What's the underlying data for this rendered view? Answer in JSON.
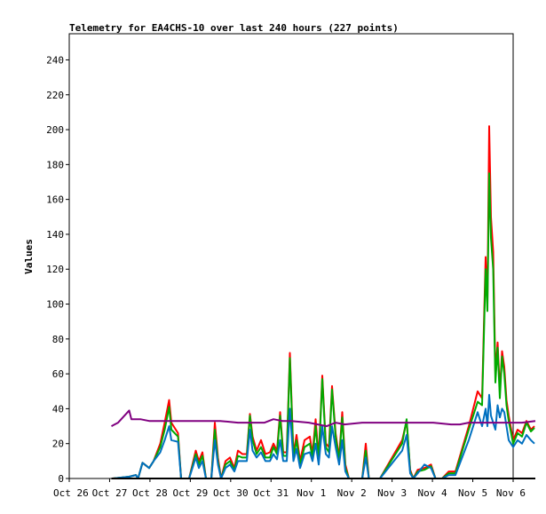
{
  "chart_data": {
    "type": "line",
    "title": "Telemetry for EA4CHS-10 over last 240 hours (227 points)",
    "xlabel": "",
    "ylabel": "Values",
    "xlim": [
      0,
      10
    ],
    "ylim": [
      0,
      255
    ],
    "x_tick_labels": [
      "Oct 26",
      "Oct 27",
      "Oct 28",
      "Oct 29",
      "Oct 30",
      "Oct 31",
      "Nov 1",
      "Nov 2",
      "Nov 3",
      "Nov 4",
      "Nov 5",
      "Nov 6"
    ],
    "y_ticks": [
      0,
      20,
      40,
      60,
      80,
      100,
      120,
      140,
      160,
      180,
      200,
      220,
      240
    ],
    "grid": false,
    "legend": "none",
    "series": [
      {
        "color": "#ff0000",
        "points": [
          [
            0.97,
            0
          ],
          [
            1.35,
            1
          ],
          [
            1.5,
            2
          ],
          [
            1.55,
            0
          ],
          [
            1.65,
            9
          ],
          [
            1.8,
            6
          ],
          [
            1.9,
            10
          ],
          [
            2.05,
            20
          ],
          [
            2.15,
            32
          ],
          [
            2.25,
            45
          ],
          [
            2.3,
            32
          ],
          [
            2.45,
            26
          ],
          [
            2.52,
            0
          ],
          [
            2.7,
            0
          ],
          [
            2.85,
            16
          ],
          [
            2.92,
            10
          ],
          [
            3.0,
            15
          ],
          [
            3.08,
            0
          ],
          [
            3.2,
            0
          ],
          [
            3.28,
            32
          ],
          [
            3.35,
            12
          ],
          [
            3.42,
            0
          ],
          [
            3.52,
            10
          ],
          [
            3.62,
            12
          ],
          [
            3.72,
            6
          ],
          [
            3.8,
            16
          ],
          [
            3.9,
            14
          ],
          [
            4.0,
            14
          ],
          [
            4.07,
            37
          ],
          [
            4.13,
            24
          ],
          [
            4.22,
            16
          ],
          [
            4.32,
            22
          ],
          [
            4.42,
            14
          ],
          [
            4.52,
            15
          ],
          [
            4.6,
            20
          ],
          [
            4.68,
            16
          ],
          [
            4.75,
            38
          ],
          [
            4.82,
            15
          ],
          [
            4.9,
            15
          ],
          [
            4.97,
            72
          ],
          [
            5.05,
            14
          ],
          [
            5.12,
            25
          ],
          [
            5.2,
            10
          ],
          [
            5.3,
            22
          ],
          [
            5.42,
            24
          ],
          [
            5.48,
            14
          ],
          [
            5.55,
            34
          ],
          [
            5.62,
            12
          ],
          [
            5.7,
            59
          ],
          [
            5.78,
            20
          ],
          [
            5.85,
            18
          ],
          [
            5.92,
            53
          ],
          [
            6.0,
            26
          ],
          [
            6.08,
            12
          ],
          [
            6.15,
            38
          ],
          [
            6.22,
            8
          ],
          [
            6.3,
            0
          ],
          [
            6.6,
            0
          ],
          [
            6.68,
            20
          ],
          [
            6.75,
            0
          ],
          [
            7.0,
            0
          ],
          [
            7.5,
            22
          ],
          [
            7.6,
            33
          ],
          [
            7.68,
            5
          ],
          [
            7.75,
            0
          ],
          [
            7.85,
            5
          ],
          [
            8.0,
            6
          ],
          [
            8.15,
            8
          ],
          [
            8.25,
            0
          ],
          [
            8.4,
            0
          ],
          [
            8.55,
            4
          ],
          [
            8.7,
            4
          ],
          [
            9.0,
            30
          ],
          [
            9.2,
            50
          ],
          [
            9.3,
            46
          ],
          [
            9.38,
            127
          ],
          [
            9.42,
            100
          ],
          [
            9.46,
            202
          ],
          [
            9.5,
            150
          ],
          [
            9.55,
            130
          ],
          [
            9.6,
            60
          ],
          [
            9.65,
            78
          ],
          [
            9.7,
            50
          ],
          [
            9.75,
            73
          ],
          [
            9.8,
            64
          ],
          [
            9.85,
            45
          ],
          [
            9.9,
            36
          ],
          [
            10.0,
            22
          ],
          [
            10.1,
            28
          ],
          [
            10.2,
            26
          ],
          [
            10.3,
            33
          ],
          [
            10.4,
            28
          ],
          [
            10.48,
            30
          ]
        ]
      },
      {
        "color": "#00aa00",
        "points": [
          [
            0.97,
            0
          ],
          [
            1.35,
            1
          ],
          [
            1.5,
            2
          ],
          [
            1.55,
            0
          ],
          [
            1.65,
            9
          ],
          [
            1.8,
            6
          ],
          [
            1.9,
            10
          ],
          [
            2.05,
            18
          ],
          [
            2.15,
            28
          ],
          [
            2.25,
            41
          ],
          [
            2.3,
            28
          ],
          [
            2.45,
            24
          ],
          [
            2.52,
            0
          ],
          [
            2.7,
            0
          ],
          [
            2.85,
            14
          ],
          [
            2.92,
            8
          ],
          [
            3.0,
            13
          ],
          [
            3.08,
            0
          ],
          [
            3.2,
            0
          ],
          [
            3.28,
            28
          ],
          [
            3.35,
            10
          ],
          [
            3.42,
            0
          ],
          [
            3.52,
            8
          ],
          [
            3.62,
            10
          ],
          [
            3.72,
            5
          ],
          [
            3.8,
            13
          ],
          [
            3.9,
            12
          ],
          [
            4.0,
            12
          ],
          [
            4.07,
            36
          ],
          [
            4.13,
            22
          ],
          [
            4.22,
            14
          ],
          [
            4.32,
            18
          ],
          [
            4.42,
            12
          ],
          [
            4.52,
            12
          ],
          [
            4.6,
            18
          ],
          [
            4.68,
            14
          ],
          [
            4.75,
            36
          ],
          [
            4.82,
            13
          ],
          [
            4.9,
            13
          ],
          [
            4.97,
            69
          ],
          [
            5.05,
            12
          ],
          [
            5.12,
            22
          ],
          [
            5.2,
            8
          ],
          [
            5.3,
            18
          ],
          [
            5.42,
            20
          ],
          [
            5.48,
            12
          ],
          [
            5.55,
            30
          ],
          [
            5.62,
            10
          ],
          [
            5.7,
            57
          ],
          [
            5.78,
            18
          ],
          [
            5.85,
            15
          ],
          [
            5.92,
            51
          ],
          [
            6.0,
            24
          ],
          [
            6.08,
            10
          ],
          [
            6.15,
            35
          ],
          [
            6.22,
            6
          ],
          [
            6.3,
            0
          ],
          [
            6.6,
            0
          ],
          [
            6.68,
            16
          ],
          [
            6.75,
            0
          ],
          [
            7.0,
            0
          ],
          [
            7.5,
            20
          ],
          [
            7.6,
            34
          ],
          [
            7.68,
            4
          ],
          [
            7.75,
            0
          ],
          [
            7.85,
            4
          ],
          [
            8.0,
            5
          ],
          [
            8.15,
            7
          ],
          [
            8.25,
            0
          ],
          [
            8.4,
            0
          ],
          [
            8.55,
            3
          ],
          [
            8.7,
            3
          ],
          [
            9.0,
            28
          ],
          [
            9.2,
            44
          ],
          [
            9.3,
            42
          ],
          [
            9.38,
            120
          ],
          [
            9.42,
            96
          ],
          [
            9.46,
            175
          ],
          [
            9.5,
            138
          ],
          [
            9.55,
            120
          ],
          [
            9.6,
            55
          ],
          [
            9.65,
            75
          ],
          [
            9.7,
            46
          ],
          [
            9.75,
            70
          ],
          [
            9.8,
            60
          ],
          [
            9.85,
            42
          ],
          [
            9.9,
            33
          ],
          [
            10.0,
            20
          ],
          [
            10.1,
            26
          ],
          [
            10.2,
            24
          ],
          [
            10.3,
            32
          ],
          [
            10.4,
            27
          ],
          [
            10.48,
            29
          ]
        ]
      },
      {
        "color": "#0070c0",
        "points": [
          [
            0.97,
            0
          ],
          [
            1.35,
            1
          ],
          [
            1.5,
            2
          ],
          [
            1.55,
            0
          ],
          [
            1.65,
            9
          ],
          [
            1.8,
            6
          ],
          [
            1.9,
            10
          ],
          [
            2.05,
            15
          ],
          [
            2.15,
            22
          ],
          [
            2.25,
            30
          ],
          [
            2.3,
            22
          ],
          [
            2.45,
            21
          ],
          [
            2.52,
            0
          ],
          [
            2.7,
            0
          ],
          [
            2.85,
            12
          ],
          [
            2.92,
            6
          ],
          [
            3.0,
            10
          ],
          [
            3.08,
            0
          ],
          [
            3.2,
            0
          ],
          [
            3.28,
            22
          ],
          [
            3.35,
            8
          ],
          [
            3.42,
            0
          ],
          [
            3.52,
            6
          ],
          [
            3.62,
            8
          ],
          [
            3.72,
            4
          ],
          [
            3.8,
            10
          ],
          [
            3.9,
            10
          ],
          [
            4.0,
            10
          ],
          [
            4.07,
            28
          ],
          [
            4.13,
            16
          ],
          [
            4.22,
            12
          ],
          [
            4.32,
            15
          ],
          [
            4.42,
            10
          ],
          [
            4.52,
            10
          ],
          [
            4.6,
            14
          ],
          [
            4.68,
            11
          ],
          [
            4.75,
            22
          ],
          [
            4.82,
            10
          ],
          [
            4.9,
            10
          ],
          [
            4.97,
            40
          ],
          [
            5.05,
            10
          ],
          [
            5.12,
            17
          ],
          [
            5.2,
            6
          ],
          [
            5.3,
            14
          ],
          [
            5.42,
            15
          ],
          [
            5.48,
            10
          ],
          [
            5.55,
            20
          ],
          [
            5.62,
            8
          ],
          [
            5.7,
            30
          ],
          [
            5.78,
            14
          ],
          [
            5.85,
            12
          ],
          [
            5.92,
            30
          ],
          [
            6.0,
            18
          ],
          [
            6.08,
            8
          ],
          [
            6.15,
            22
          ],
          [
            6.22,
            4
          ],
          [
            6.3,
            0
          ],
          [
            6.6,
            0
          ],
          [
            6.68,
            12
          ],
          [
            6.75,
            0
          ],
          [
            7.0,
            0
          ],
          [
            7.5,
            16
          ],
          [
            7.6,
            25
          ],
          [
            7.68,
            3
          ],
          [
            7.75,
            0
          ],
          [
            7.85,
            3
          ],
          [
            8.0,
            8
          ],
          [
            8.15,
            6
          ],
          [
            8.25,
            0
          ],
          [
            8.4,
            0
          ],
          [
            8.55,
            2
          ],
          [
            8.7,
            2
          ],
          [
            9.0,
            22
          ],
          [
            9.2,
            38
          ],
          [
            9.3,
            30
          ],
          [
            9.38,
            40
          ],
          [
            9.42,
            30
          ],
          [
            9.46,
            48
          ],
          [
            9.5,
            36
          ],
          [
            9.55,
            32
          ],
          [
            9.6,
            28
          ],
          [
            9.65,
            42
          ],
          [
            9.7,
            35
          ],
          [
            9.75,
            40
          ],
          [
            9.8,
            38
          ],
          [
            9.85,
            30
          ],
          [
            9.9,
            22
          ],
          [
            10.0,
            18
          ],
          [
            10.1,
            22
          ],
          [
            10.2,
            20
          ],
          [
            10.3,
            25
          ],
          [
            10.4,
            22
          ],
          [
            10.48,
            20
          ]
        ]
      },
      {
        "color": "#800080",
        "points": [
          [
            0.95,
            30
          ],
          [
            1.1,
            32
          ],
          [
            1.35,
            39
          ],
          [
            1.4,
            34
          ],
          [
            1.6,
            34
          ],
          [
            1.8,
            33
          ],
          [
            2.0,
            33
          ],
          [
            2.3,
            33
          ],
          [
            2.6,
            33
          ],
          [
            3.0,
            33
          ],
          [
            3.4,
            33
          ],
          [
            3.8,
            32
          ],
          [
            4.2,
            32
          ],
          [
            4.4,
            32
          ],
          [
            4.6,
            34
          ],
          [
            4.8,
            33
          ],
          [
            5.0,
            33
          ],
          [
            5.4,
            32
          ],
          [
            5.6,
            31
          ],
          [
            5.8,
            30
          ],
          [
            6.0,
            32
          ],
          [
            6.2,
            31
          ],
          [
            6.6,
            32
          ],
          [
            7.0,
            32
          ],
          [
            7.4,
            32
          ],
          [
            7.8,
            32
          ],
          [
            8.2,
            32
          ],
          [
            8.6,
            31
          ],
          [
            8.8,
            31
          ],
          [
            9.0,
            32
          ],
          [
            9.4,
            32
          ],
          [
            9.8,
            32
          ],
          [
            10.2,
            32
          ],
          [
            10.5,
            33
          ]
        ]
      },
      {
        "color": "#000000",
        "points": [
          [
            0.95,
            0
          ],
          [
            10.5,
            0
          ]
        ]
      }
    ]
  }
}
